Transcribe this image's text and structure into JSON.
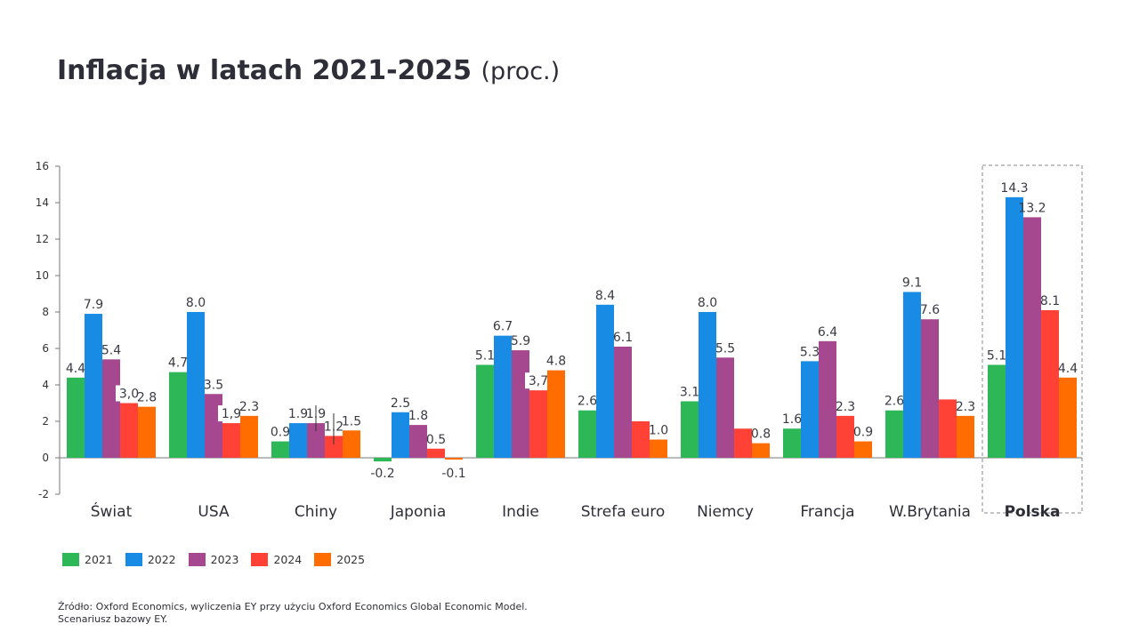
{
  "title": {
    "main": "Inflacja w latach 2021-2025",
    "suffix": "(proc.)"
  },
  "footer": {
    "line1": "Źródło: Oxford Economics, wyliczenia EY przy użyciu Oxford Economics Global Economic Model.",
    "line2": "Scenariusz bazowy EY."
  },
  "chart_data": {
    "type": "bar",
    "title": "Inflacja w latach 2021-2025 (proc.)",
    "xlabel": "",
    "ylabel": "",
    "ylim": [
      -2,
      16
    ],
    "yticks": [
      -2,
      0,
      2,
      4,
      6,
      8,
      10,
      12,
      14,
      16
    ],
    "grid": false,
    "legend_position": "bottom-left",
    "highlighted_category": "Polska",
    "categories": [
      "Świat",
      "USA",
      "Chiny",
      "Japonia",
      "Indie",
      "Strefa euro",
      "Niemcy",
      "Francja",
      "W.Brytania",
      "Polska"
    ],
    "series": [
      {
        "name": "2021",
        "color": "#2db757",
        "values": [
          4.4,
          4.7,
          0.9,
          -0.2,
          5.1,
          2.6,
          3.1,
          1.6,
          2.6,
          5.1
        ],
        "labels": [
          "4.4",
          "4.7",
          "0.9",
          "-0.2",
          "5.1",
          "2.6",
          "3.1",
          "1.6",
          "2.6",
          "5.1"
        ]
      },
      {
        "name": "2022",
        "color": "#188ce5",
        "values": [
          7.9,
          8.0,
          1.9,
          2.5,
          6.7,
          8.4,
          8.0,
          5.3,
          9.1,
          14.3
        ],
        "labels": [
          "7.9",
          "8.0",
          "1.9",
          "2.5",
          "6.7",
          "8.4",
          "8.0",
          "5.3",
          "9.1",
          "14.3"
        ]
      },
      {
        "name": "2023",
        "color": "#a6488f",
        "values": [
          5.4,
          3.5,
          1.9,
          1.8,
          5.9,
          6.1,
          5.5,
          6.4,
          7.6,
          13.2
        ],
        "labels": [
          "5.4",
          "3.5",
          "1.9",
          "1.8",
          "5.9",
          "6.1",
          "5.5",
          "6.4",
          "7.6",
          "13.2"
        ]
      },
      {
        "name": "2024",
        "color": "#ff4136",
        "values": [
          3.0,
          1.9,
          1.2,
          0.5,
          3.7,
          2.0,
          1.6,
          2.3,
          3.2,
          8.1
        ],
        "labels": [
          "3,0",
          "1,9",
          "1.2",
          "0.5",
          "3,7",
          "",
          "",
          "2.3",
          "",
          "8.1"
        ]
      },
      {
        "name": "2025",
        "color": "#ff6d00",
        "values": [
          2.8,
          2.3,
          1.5,
          -0.1,
          4.8,
          1.0,
          0.8,
          0.9,
          2.3,
          4.4
        ],
        "labels": [
          "2.8",
          "2.3",
          "1.5",
          "-0.1",
          "4.8",
          "1.0",
          "0.8",
          "0.9",
          "2.3",
          "4.4"
        ]
      }
    ]
  }
}
